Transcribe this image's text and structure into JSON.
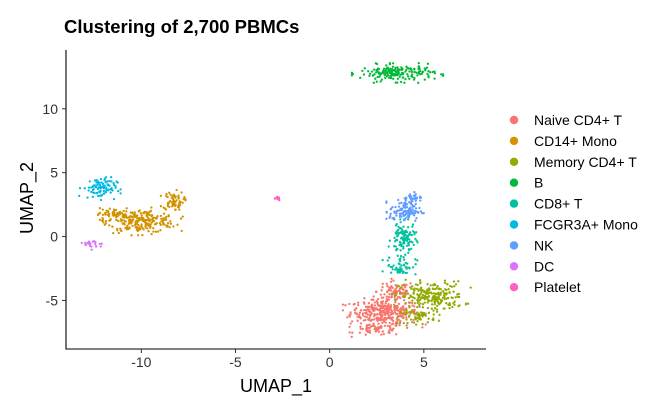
{
  "chart_data": {
    "type": "scatter",
    "title": "Clustering of 2,700 PBMCs",
    "xlabel": "UMAP_1",
    "ylabel": "UMAP_2",
    "xlim": [
      -14,
      8.3
    ],
    "ylim": [
      -8.8,
      14.6
    ],
    "xticks": [
      -10,
      -5,
      0,
      5
    ],
    "yticks": [
      -5,
      0,
      5,
      10
    ],
    "grid": false,
    "legend_position": "right",
    "series": [
      {
        "name": "Naive CD4+ T",
        "color": "#F8766D",
        "clusters": [
          {
            "cx": 2.9,
            "cy": -5.9,
            "rx": 2.0,
            "ry": 1.1,
            "n": 330
          },
          {
            "cx": 3.5,
            "cy": -4.3,
            "rx": 1.1,
            "ry": 0.9,
            "n": 80
          },
          {
            "cx": 2.6,
            "cy": -7.3,
            "rx": 1.4,
            "ry": 0.5,
            "n": 60
          }
        ]
      },
      {
        "name": "CD14+ Mono",
        "color": "#D39200",
        "clusters": [
          {
            "cx": -10.0,
            "cy": 1.2,
            "rx": 2.0,
            "ry": 1.0,
            "n": 230
          },
          {
            "cx": -8.3,
            "cy": 2.8,
            "rx": 0.6,
            "ry": 0.8,
            "n": 70
          },
          {
            "cx": -11.6,
            "cy": 1.7,
            "rx": 0.8,
            "ry": 0.6,
            "n": 50
          }
        ]
      },
      {
        "name": "Memory CD4+ T",
        "color": "#93AA00",
        "clusters": [
          {
            "cx": 5.4,
            "cy": -4.7,
            "rx": 1.9,
            "ry": 1.3,
            "n": 230
          },
          {
            "cx": 4.7,
            "cy": -6.3,
            "rx": 1.0,
            "ry": 0.6,
            "n": 50
          }
        ]
      },
      {
        "name": "B",
        "color": "#00BA38",
        "clusters": [
          {
            "cx": 3.6,
            "cy": 12.8,
            "rx": 2.2,
            "ry": 0.7,
            "n": 190
          }
        ]
      },
      {
        "name": "CD8+ T",
        "color": "#00C19F",
        "clusters": [
          {
            "cx": 3.9,
            "cy": -0.2,
            "rx": 0.7,
            "ry": 1.4,
            "n": 110
          },
          {
            "cx": 3.8,
            "cy": -2.3,
            "rx": 0.9,
            "ry": 0.8,
            "n": 50
          }
        ]
      },
      {
        "name": "FCGR3A+ Mono",
        "color": "#00B9E3",
        "clusters": [
          {
            "cx": -12.2,
            "cy": 3.8,
            "rx": 1.0,
            "ry": 0.9,
            "n": 90
          }
        ]
      },
      {
        "name": "NK",
        "color": "#619CFF",
        "clusters": [
          {
            "cx": 4.0,
            "cy": 2.0,
            "rx": 0.9,
            "ry": 0.9,
            "n": 110
          },
          {
            "cx": 4.4,
            "cy": 3.1,
            "rx": 0.5,
            "ry": 0.4,
            "n": 30
          }
        ]
      },
      {
        "name": "DC",
        "color": "#DB72FB",
        "clusters": [
          {
            "cx": -12.5,
            "cy": -0.6,
            "rx": 0.6,
            "ry": 0.4,
            "n": 22
          }
        ]
      },
      {
        "name": "Platelet",
        "color": "#FF61C3",
        "clusters": [
          {
            "cx": -2.8,
            "cy": 3.0,
            "rx": 0.25,
            "ry": 0.18,
            "n": 14
          }
        ]
      }
    ]
  }
}
